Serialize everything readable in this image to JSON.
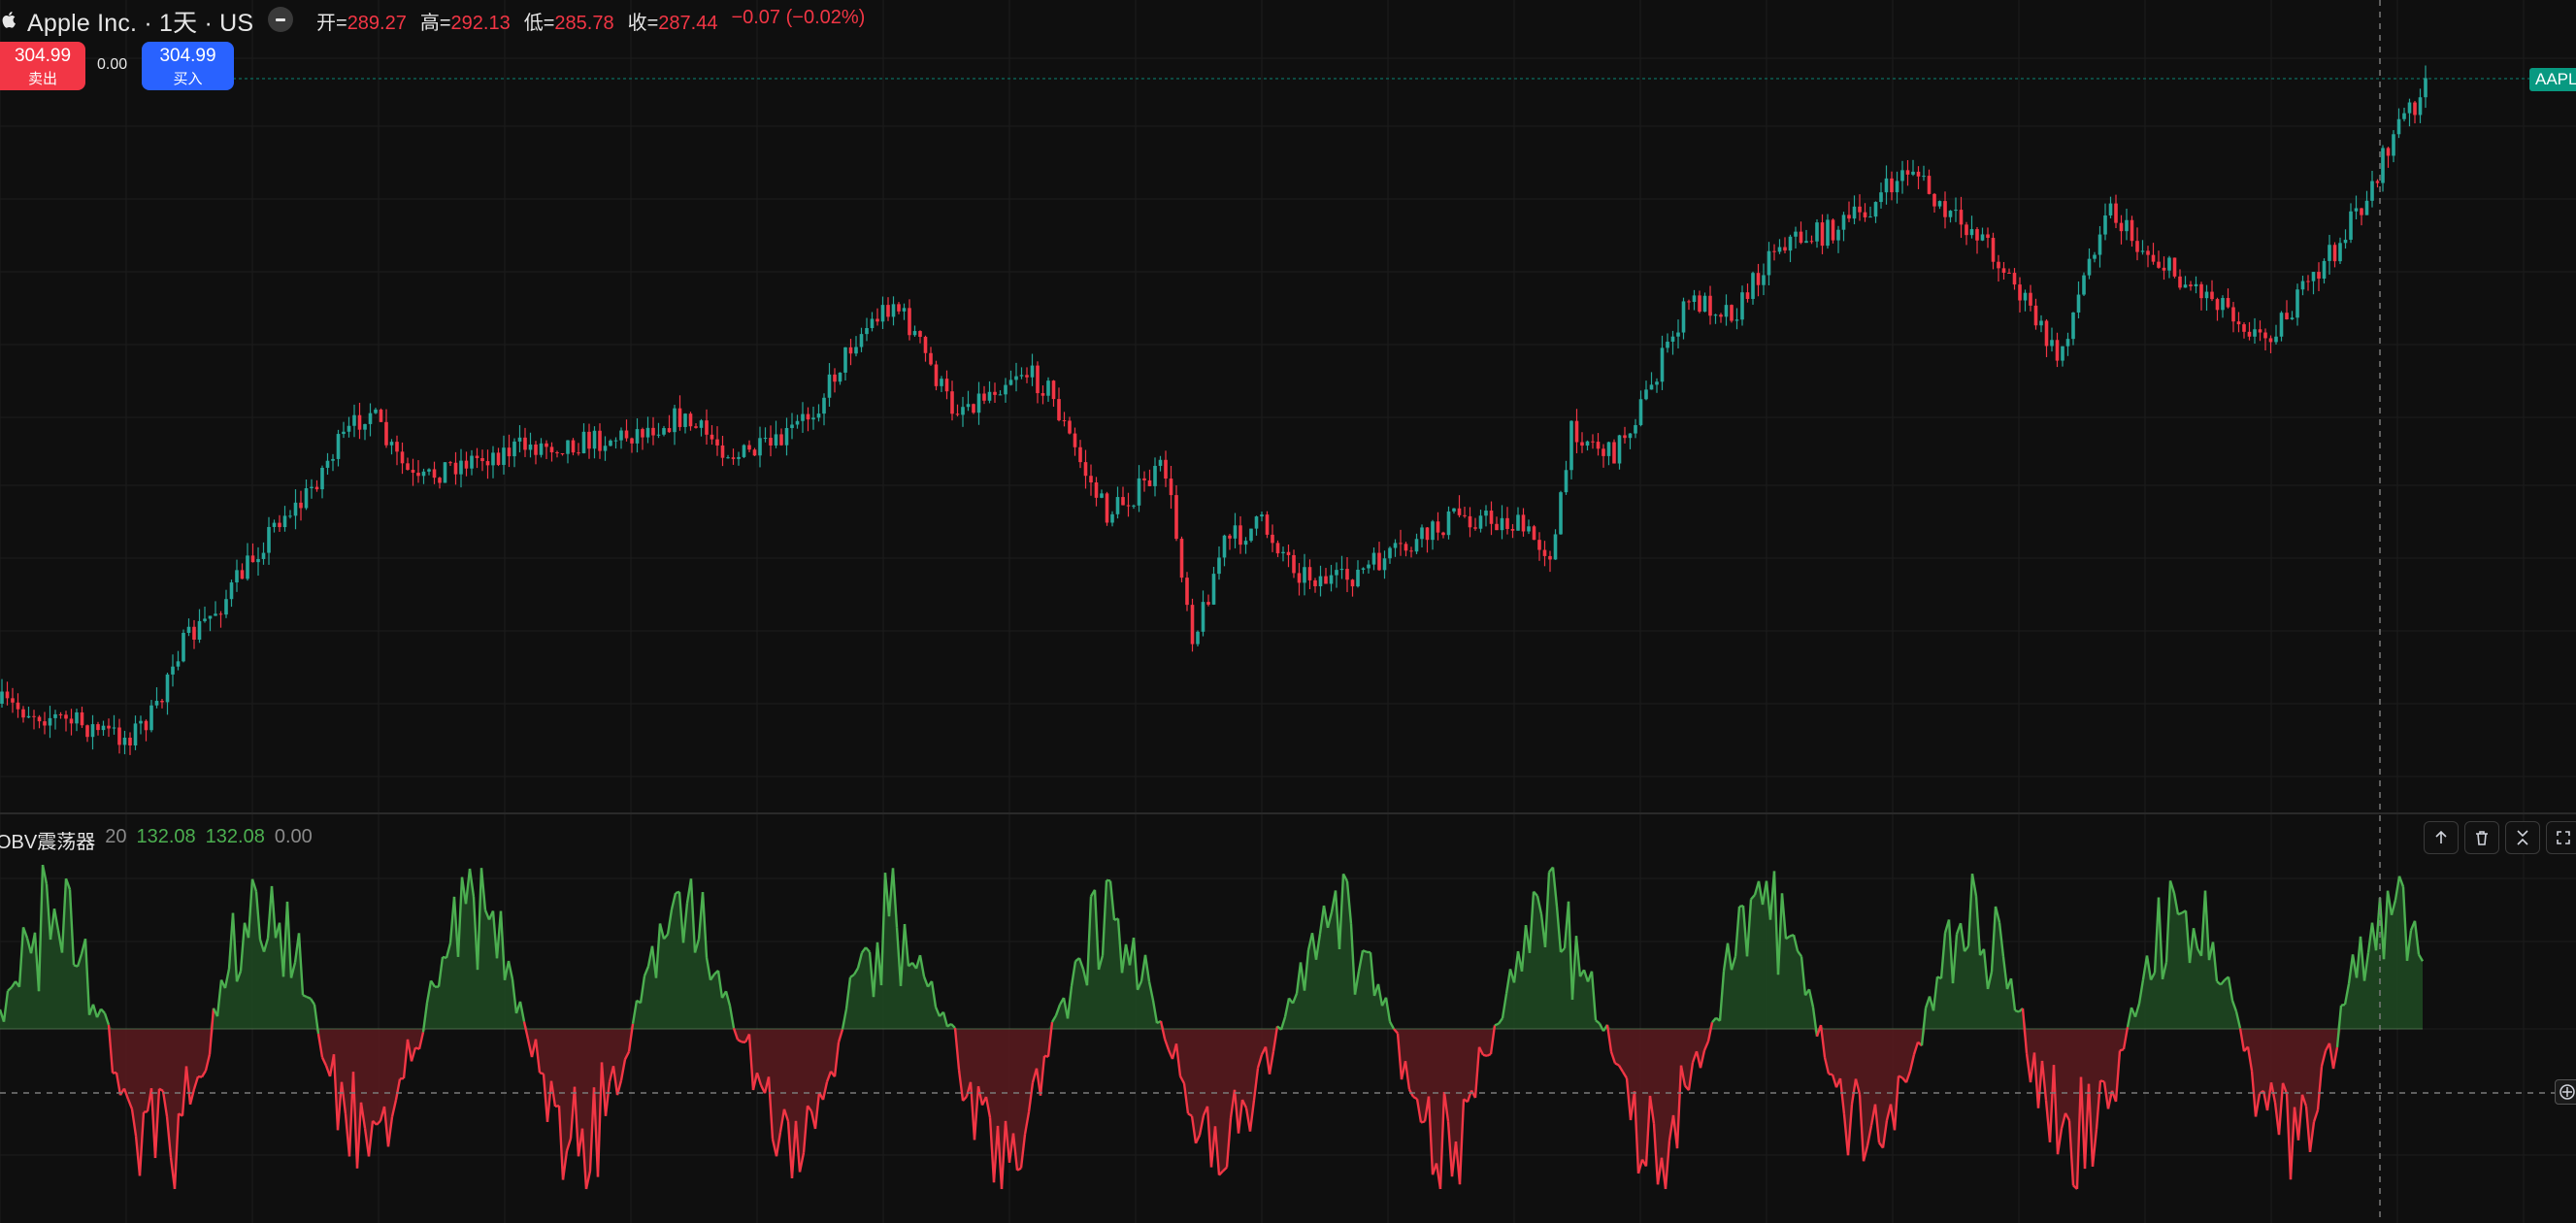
{
  "header": {
    "symbol_title": "Apple Inc. · 1天 · US",
    "ohlc": [
      {
        "label": "开=",
        "value": "289.27"
      },
      {
        "label": "高=",
        "value": "292.13"
      },
      {
        "label": "低=",
        "value": "285.78"
      },
      {
        "label": "收=",
        "value": "287.44"
      }
    ],
    "change": "−0.07 (−0.02%)"
  },
  "trade": {
    "sell_price": "304.99",
    "sell_label": "卖出",
    "spread": "0.00",
    "buy_price": "304.99",
    "buy_label": "买入"
  },
  "price_tag": "AAPL",
  "indicator": {
    "name": "OBV震荡器",
    "length": "20",
    "value1": "132.08",
    "value2": "132.08",
    "value3": "0.00"
  },
  "icons": [
    "apple-icon",
    "collapse-icon",
    "arrow-up-icon",
    "trash-icon",
    "collapse-pane-icon",
    "maximize-icon",
    "crosshair-plus-icon"
  ],
  "colors": {
    "up": "#26a69a",
    "down": "#f23645",
    "osc_pos_line": "#4caf50",
    "osc_neg_line": "#f23645",
    "osc_pos_fill": "#1f4a22",
    "osc_neg_fill": "#5a1a1e",
    "buy": "#2962ff",
    "sell": "#f23645",
    "tag": "#089981"
  }
}
